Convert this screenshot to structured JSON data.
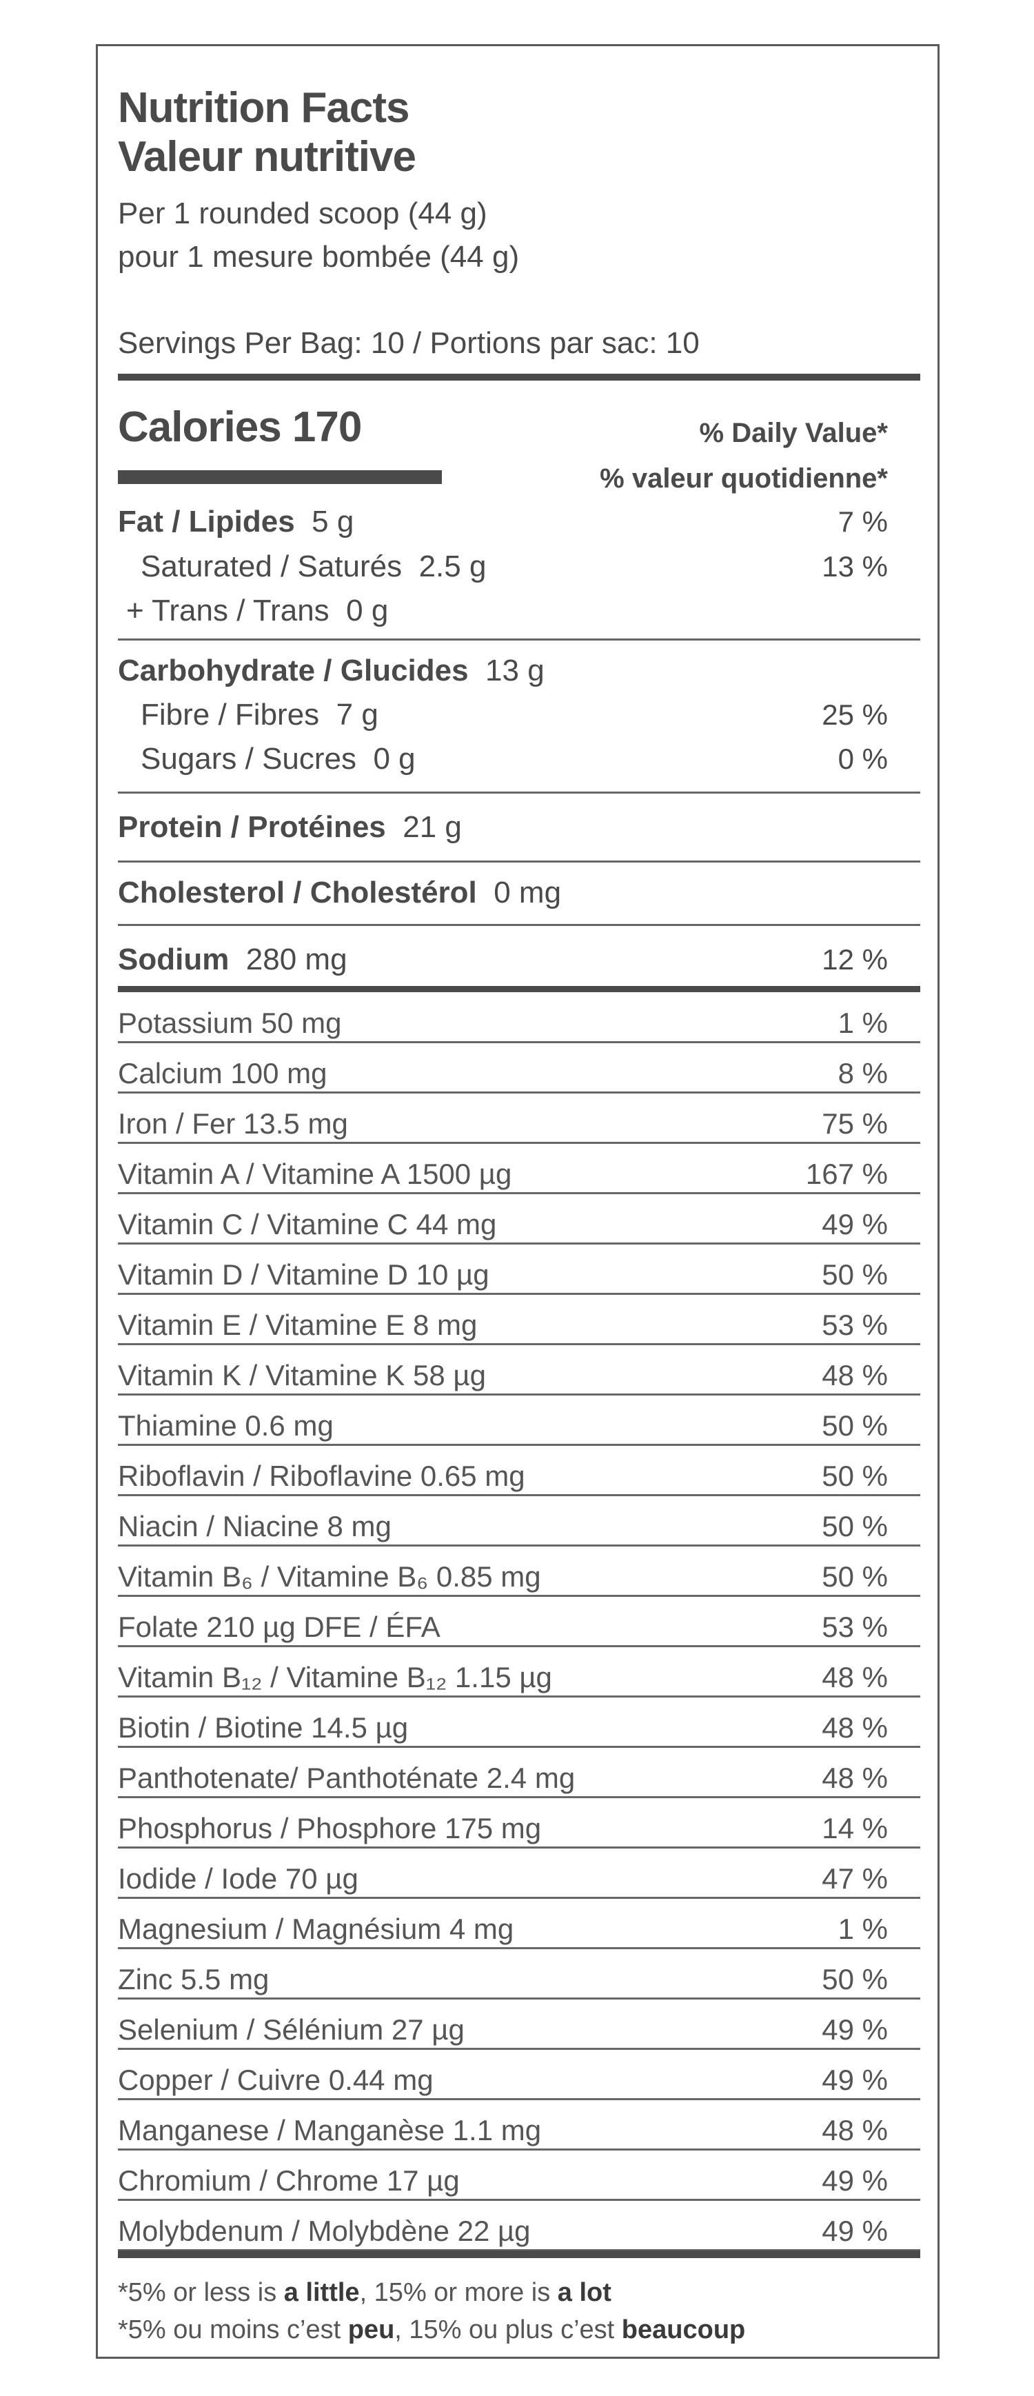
{
  "header": {
    "title_en": "Nutrition Facts",
    "title_fr": "Valeur nutritive",
    "serving_en": "Per 1 rounded scoop (44 g)",
    "serving_fr": "pour 1 mesure bombée (44 g)",
    "servings": "Servings Per Bag: 10 / Portions par sac: 10"
  },
  "calories": {
    "label": "Calories 170",
    "dv_en": "% Daily Value*",
    "dv_fr": "% valeur quotidienne*"
  },
  "macros": {
    "fat": {
      "label": "Fat / Lipides",
      "amount": "5 g",
      "dv": "7 %"
    },
    "saturated": {
      "label": "Saturated / Saturés",
      "amount": "2.5 g",
      "dv": "13 %"
    },
    "trans": {
      "label": "+ Trans / Trans",
      "amount": "0 g"
    },
    "carb": {
      "label": "Carbohydrate / Glucides",
      "amount": "13 g"
    },
    "fibre": {
      "label": "Fibre / Fibres",
      "amount": "7 g",
      "dv": "25 %"
    },
    "sugars": {
      "label": "Sugars / Sucres",
      "amount": "0 g",
      "dv": "0 %"
    },
    "protein": {
      "label": "Protein / Protéines",
      "amount": "21 g"
    },
    "cholesterol": {
      "label": "Cholesterol / Cholestérol",
      "amount": "0 mg"
    },
    "sodium": {
      "label": "Sodium",
      "amount": "280 mg",
      "dv": "12 %"
    }
  },
  "vitamins": [
    {
      "name": "Potassium  50 mg",
      "dv": "1 %"
    },
    {
      "name": "Calcium  100 mg",
      "dv": "8 %"
    },
    {
      "name": "Iron / Fer  13.5 mg",
      "dv": "75 %"
    },
    {
      "name": "Vitamin A / Vitamine A  1500 µg",
      "dv": "167 %"
    },
    {
      "name": "Vitamin C / Vitamine C  44 mg",
      "dv": "49 %"
    },
    {
      "name": "Vitamin D / Vitamine D  10 µg",
      "dv": "50 %"
    },
    {
      "name": "Vitamin E / Vitamine E  8 mg",
      "dv": "53 %"
    },
    {
      "name": "Vitamin K / Vitamine K 58 µg",
      "dv": "48 %"
    },
    {
      "name": "Thiamine  0.6 mg",
      "dv": "50 %"
    },
    {
      "name": "Riboflavin / Riboflavine  0.65 mg",
      "dv": "50 %"
    },
    {
      "name": "Niacin / Niacine 8 mg",
      "dv": "50 %"
    },
    {
      "name": "Vitamin B₆ / Vitamine B₆  0.85 mg",
      "dv": "50 %"
    },
    {
      "name": "Folate 210 µg DFE / ÉFA",
      "dv": "53 %"
    },
    {
      "name": "Vitamin B₁₂ / Vitamine B₁₂  1.15 µg",
      "dv": "48 %"
    },
    {
      "name": "Biotin / Biotine  14.5 µg",
      "dv": "48 %"
    },
    {
      "name": "Panthotenate/ Panthoténate  2.4 mg",
      "dv": "48 %"
    },
    {
      "name": "Phosphorus / Phosphore  175 mg",
      "dv": "14 %"
    },
    {
      "name": "Iodide / Iode  70 µg",
      "dv": "47 %"
    },
    {
      "name": "Magnesium / Magnésium  4 mg",
      "dv": "1 %"
    },
    {
      "name": "Zinc 5.5 mg",
      "dv": "50 %"
    },
    {
      "name": "Selenium / Sélénium  27 µg",
      "dv": "49 %"
    },
    {
      "name": "Copper / Cuivre  0.44 mg",
      "dv": "49 %"
    },
    {
      "name": "Manganese / Manganèse  1.1 mg",
      "dv": "48 %"
    },
    {
      "name": "Chromium / Chrome  17 µg",
      "dv": "49 %"
    },
    {
      "name": "Molybdenum / Molybdène  22 µg",
      "dv": "49 %"
    }
  ],
  "footnote": {
    "en_1": "*5% or less is ",
    "en_b1": "a little",
    "en_2": ", 15% or more is ",
    "en_b2": "a lot",
    "fr_1": "*5% ou moins c’est ",
    "fr_b1": "peu",
    "fr_2": ", 15% ou plus c’est ",
    "fr_b2": "beaucoup"
  }
}
